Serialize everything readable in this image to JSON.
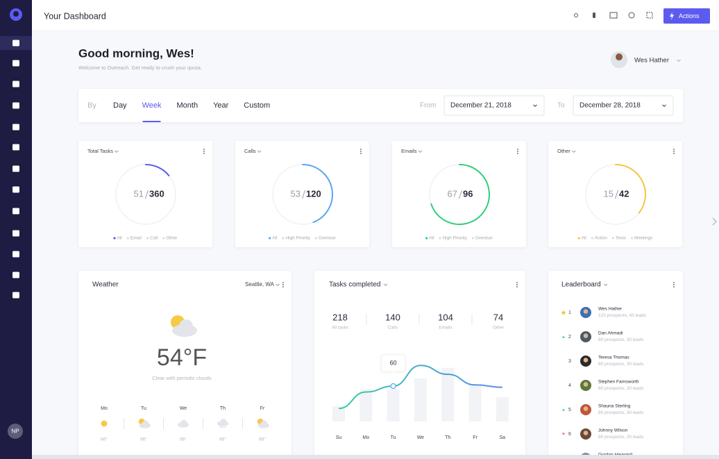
{
  "header": {
    "title": "Your Dashboard",
    "actions": "Actions"
  },
  "sidebar": {
    "avatar": "NP"
  },
  "greeting": {
    "title": "Good morning, Wes!",
    "subtitle": "Welcome to Outreach. Get ready to crush your qouta."
  },
  "user": {
    "name": "Wes Hather"
  },
  "filter": {
    "by": "By",
    "periods": [
      "Day",
      "Week",
      "Month",
      "Year",
      "Custom"
    ],
    "active": 1,
    "from_label": "From",
    "from": "December 21, 2018",
    "to_label": "To",
    "to": "December 28, 2018"
  },
  "cards": [
    {
      "title": "Total Tasks",
      "done": 51,
      "total": 360,
      "color": "#5b5bf0",
      "legend": [
        "All",
        "Email",
        "Call",
        "Other"
      ]
    },
    {
      "title": "Calls",
      "done": 53,
      "total": 120,
      "color": "#5aa6f2",
      "legend": [
        "All",
        "High Priority",
        "Overdue"
      ]
    },
    {
      "title": "Emails",
      "done": 67,
      "total": 96,
      "color": "#2fcf7a",
      "legend": [
        "All",
        "High Priority",
        "Overdue"
      ]
    },
    {
      "title": "Other",
      "done": 15,
      "total": 42,
      "color": "#f5c542",
      "legend": [
        "All",
        "Action",
        "Texts",
        "Meetings"
      ]
    }
  ],
  "weather": {
    "title": "Weather",
    "location": "Seattle, WA",
    "temp": "54°F",
    "description": "Clear with periodic clouds",
    "forecast": [
      {
        "day": "Mo",
        "icon": "sun",
        "temp": "66°"
      },
      {
        "day": "Tu",
        "icon": "partly",
        "temp": "66°"
      },
      {
        "day": "We",
        "icon": "cloud",
        "temp": "66°"
      },
      {
        "day": "Th",
        "icon": "rain",
        "temp": "66°"
      },
      {
        "day": "Fr",
        "icon": "partly",
        "temp": "66°"
      }
    ]
  },
  "tasks": {
    "title": "Tasks completed",
    "stats": [
      {
        "value": 218,
        "label": "All tasks"
      },
      {
        "value": 140,
        "label": "Calls"
      },
      {
        "value": 104,
        "label": "Emails"
      },
      {
        "value": 74,
        "label": "Other"
      }
    ],
    "chart": {
      "type": "line",
      "days": [
        "Su",
        "Mo",
        "Tu",
        "We",
        "Th",
        "Fr",
        "Sa"
      ],
      "line": [
        22,
        50,
        60,
        95,
        80,
        62,
        58
      ],
      "bars": [
        26,
        55,
        55,
        73,
        91,
        61,
        41
      ],
      "ylim": [
        0,
        100
      ],
      "tooltip_index": 2
    }
  },
  "leaderboard": {
    "title": "Leaderboard",
    "rows": [
      {
        "marker": "star",
        "rank": 1,
        "name": "Wes Hather",
        "detail": "120 prospects, 43 leads"
      },
      {
        "marker": "up",
        "rank": 2,
        "name": "Dan Ahmadi",
        "detail": "80 prospects, 30 leads"
      },
      {
        "marker": "none",
        "rank": 3,
        "name": "Teresa Thomas",
        "detail": "80 prospects, 30 leads"
      },
      {
        "marker": "none",
        "rank": 4,
        "name": "Stephen Farnsworth",
        "detail": "80 prospects, 30 leads"
      },
      {
        "marker": "up",
        "rank": 5,
        "name": "Shauna Sterling",
        "detail": "80 prospects, 30 leads"
      },
      {
        "marker": "down",
        "rank": 6,
        "name": "Johnny Wilson",
        "detail": "80 prospects, 30 leads"
      },
      {
        "marker": "none",
        "name": "Gordon Hayward"
      }
    ]
  }
}
